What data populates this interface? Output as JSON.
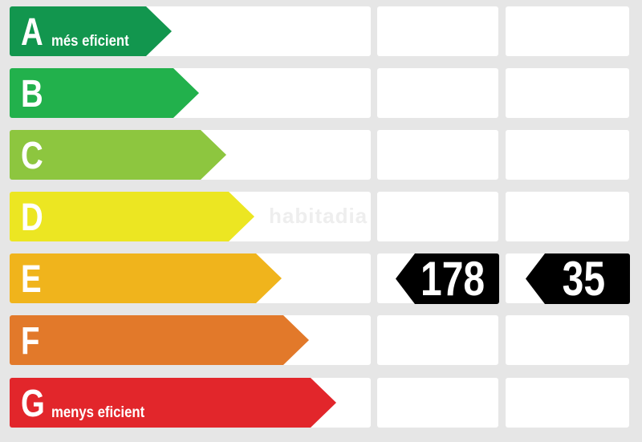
{
  "ratings": [
    {
      "letter": "A",
      "label": "més eficient",
      "color": "#12964e"
    },
    {
      "letter": "B",
      "label": "",
      "color": "#22b14c"
    },
    {
      "letter": "C",
      "label": "",
      "color": "#8dc63f"
    },
    {
      "letter": "D",
      "label": "",
      "color": "#ece622"
    },
    {
      "letter": "E",
      "label": "",
      "color": "#f0b41c"
    },
    {
      "letter": "F",
      "label": "",
      "color": "#e2792a"
    },
    {
      "letter": "G",
      "label": "menys eficient",
      "color": "#e2262b"
    }
  ],
  "indicators": [
    {
      "rating": "E",
      "value": "178"
    },
    {
      "rating": "E",
      "value": "35"
    }
  ],
  "watermark": "habitadia"
}
